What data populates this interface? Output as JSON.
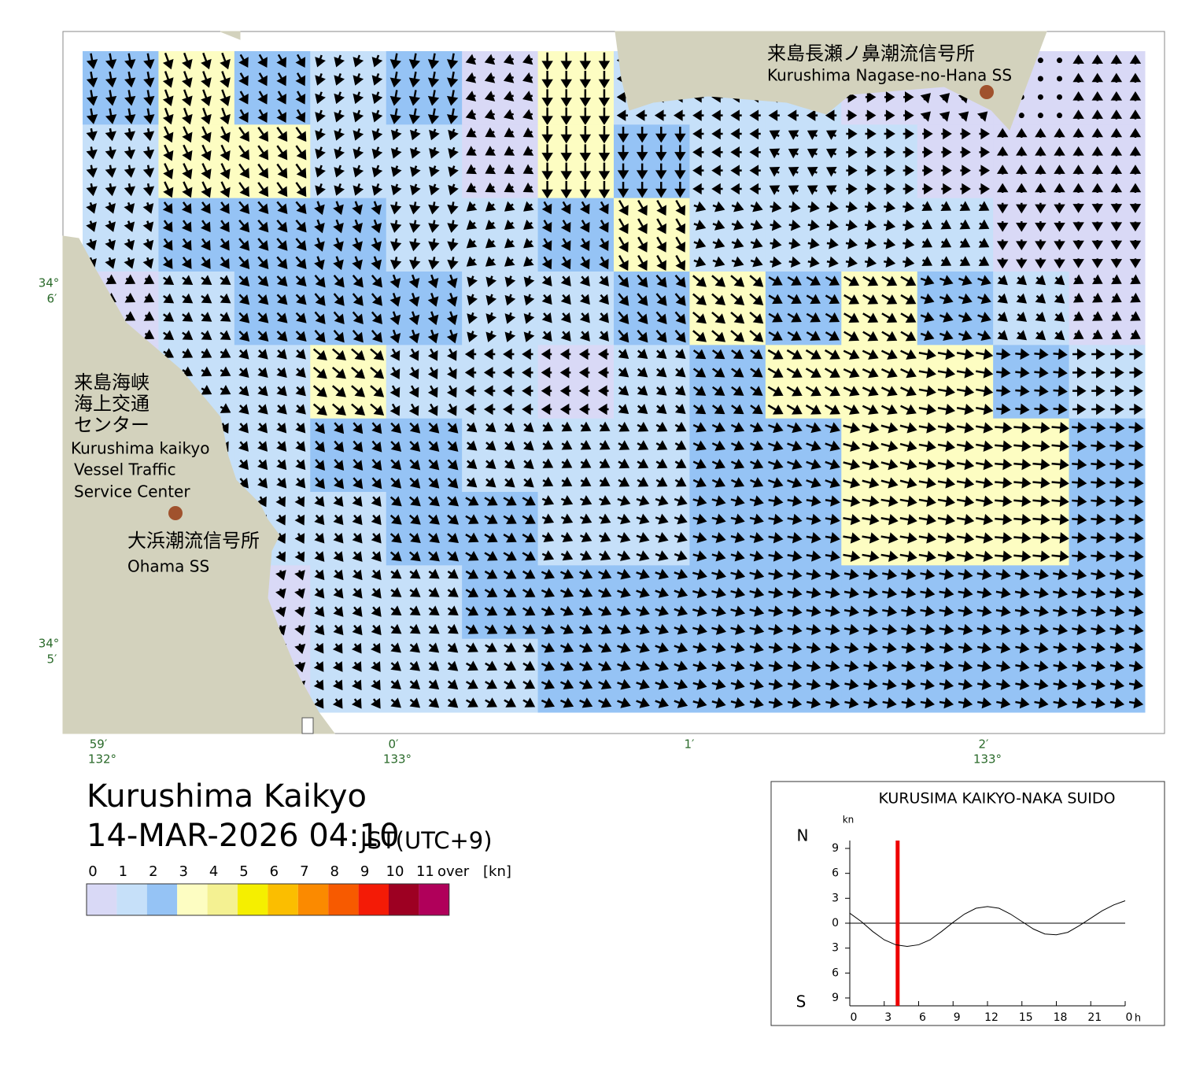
{
  "map": {
    "title": "Kurushima Kaikyo",
    "datetime": "14-MAR-2026 04:10",
    "timezone": "JST(UTC+9)",
    "lat_labels": [
      {
        "deg": "34°",
        "min": "6′"
      },
      {
        "deg": "34°",
        "min": "5′"
      }
    ],
    "lon_labels": [
      {
        "min": "59′",
        "deg": "132°"
      },
      {
        "min": "0′",
        "deg": "133°"
      },
      {
        "min": "1′"
      },
      {
        "min": "2′",
        "deg": "133°"
      }
    ],
    "stations": [
      {
        "ja": "来島長瀬ノ鼻潮流信号所",
        "en": "Kurushima Nagase-no-Hana SS"
      },
      {
        "ja": "大浜潮流信号所",
        "en": "Ohama SS"
      }
    ],
    "vts": {
      "ja": [
        "来島海峡",
        "海上交通",
        "センター"
      ],
      "en": [
        "Kurushima kaikyo",
        "Vessel Traffic",
        "Service Center"
      ]
    },
    "current_grid": {
      "speed": [
        [
          2.5,
          3.5,
          2.2,
          1.5,
          2.5,
          0.8,
          3.5,
          1,
          1,
          1,
          0.8,
          0.5,
          0.3,
          0.5
        ],
        [
          1.5,
          3.2,
          3.0,
          1.5,
          1.2,
          0.8,
          3.2,
          2.5,
          1,
          1,
          1,
          0.8,
          0.5,
          0.5
        ],
        [
          1.2,
          2.0,
          2.5,
          2.0,
          1.5,
          1,
          2.0,
          3.2,
          1.5,
          1.2,
          1.2,
          1,
          0.8,
          0.5
        ],
        [
          0.8,
          1.5,
          2.0,
          2.5,
          2.0,
          1.2,
          1.5,
          2.5,
          3.2,
          2.5,
          3.2,
          2.0,
          1.2,
          0.8
        ],
        [
          0.3,
          1.2,
          1.5,
          3.2,
          1.8,
          1,
          0.8,
          1.5,
          2.2,
          3.3,
          3.4,
          3.2,
          2.0,
          1.8
        ],
        [
          0.8,
          1.2,
          1.5,
          2.0,
          2.0,
          1.5,
          1.2,
          1.5,
          2.0,
          2.5,
          3.3,
          3.4,
          3.2,
          2.2
        ],
        [
          0.5,
          0.5,
          1.2,
          1.5,
          2.0,
          2.2,
          1.5,
          1.8,
          2.0,
          2.2,
          3.2,
          3.3,
          3.2,
          2.2
        ],
        [
          0.3,
          0.5,
          0.8,
          1.5,
          1.5,
          2.0,
          2.0,
          2.0,
          2.2,
          2.2,
          2.2,
          2.2,
          2.2,
          2.2
        ],
        [
          0.3,
          0.5,
          0.8,
          1.2,
          1.5,
          1.8,
          2.0,
          2.0,
          2.0,
          2.0,
          2.0,
          2.0,
          2.0,
          2.0
        ]
      ],
      "direction": [
        [
          170,
          160,
          150,
          200,
          190,
          250,
          180,
          270,
          270,
          270,
          90,
          45,
          0,
          0
        ],
        [
          170,
          155,
          145,
          200,
          200,
          240,
          180,
          180,
          270,
          300,
          90,
          90,
          0,
          0
        ],
        [
          160,
          145,
          140,
          160,
          190,
          230,
          150,
          150,
          110,
          100,
          100,
          120,
          180,
          180
        ],
        [
          120,
          125,
          135,
          140,
          160,
          200,
          140,
          140,
          130,
          120,
          120,
          110,
          130,
          120
        ],
        [
          90,
          120,
          135,
          130,
          150,
          270,
          270,
          130,
          125,
          120,
          115,
          100,
          95,
          90
        ],
        [
          150,
          150,
          140,
          140,
          135,
          130,
          120,
          120,
          115,
          110,
          105,
          100,
          95,
          95
        ],
        [
          170,
          165,
          150,
          140,
          130,
          120,
          115,
          110,
          105,
          100,
          100,
          100,
          95,
          95
        ],
        [
          10,
          170,
          160,
          140,
          125,
          120,
          115,
          110,
          105,
          100,
          100,
          100,
          100,
          100
        ],
        [
          0,
          175,
          165,
          145,
          130,
          120,
          115,
          110,
          105,
          100,
          100,
          100,
          100,
          100
        ]
      ]
    }
  },
  "legend": {
    "bins": [
      0,
      1,
      2,
      3,
      4,
      5,
      6,
      7,
      8,
      9,
      10,
      11
    ],
    "over": "over",
    "unit": "[kn]",
    "colors": [
      "#d9d9f6",
      "#c6e0f9",
      "#95c3f5",
      "#fdfdc2",
      "#f4f192",
      "#f5ef00",
      "#fbbe00",
      "#fb8a00",
      "#f75a00",
      "#f41b06",
      "#9d0022",
      "#b0005a"
    ]
  },
  "chart_data": {
    "type": "line",
    "title": "KURUSIMA KAIKYO-NAKA SUIDO",
    "y_unit": "kn",
    "north_label": "N",
    "south_label": "S",
    "x": [
      0,
      1,
      2,
      3,
      4,
      5,
      6,
      7,
      8,
      9,
      10,
      11,
      12,
      13,
      14,
      15,
      16,
      17,
      18,
      19,
      20,
      21,
      22,
      23,
      24
    ],
    "series": [
      {
        "color": "#000000",
        "values": [
          1.2,
          0.2,
          -1,
          -2,
          -2.6,
          -2.8,
          -2.6,
          -2,
          -1,
          0.1,
          1.1,
          1.8,
          2.0,
          1.8,
          1.1,
          0.2,
          -0.7,
          -1.3,
          -1.4,
          -1.1,
          -0.3,
          0.6,
          1.5,
          2.2,
          2.7
        ]
      }
    ],
    "marker_hour": 4.17,
    "marker_color": "#ee0000",
    "xlim": [
      0,
      24
    ],
    "ylim": [
      -9,
      9
    ],
    "xticks": [
      0,
      3,
      6,
      9,
      12,
      15,
      18,
      21,
      {
        "value": 24,
        "label": "0"
      }
    ],
    "x_unit": "h",
    "yticks": [
      {
        "value": -9,
        "label": "9"
      },
      {
        "value": -6,
        "label": "6"
      },
      {
        "value": -3,
        "label": "3"
      },
      0,
      3,
      6,
      9
    ]
  }
}
